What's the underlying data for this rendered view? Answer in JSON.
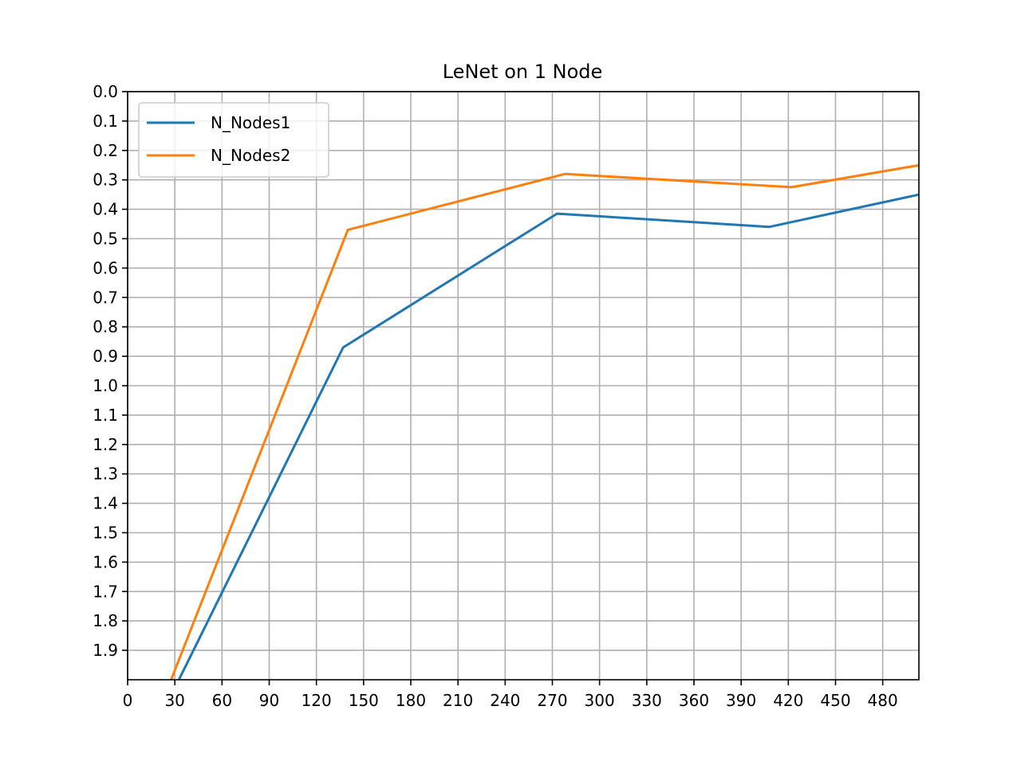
{
  "chart_data": {
    "type": "line",
    "title": "LeNet on 1 Node",
    "xlabel": "",
    "ylabel": "",
    "xlim": [
      0,
      503
    ],
    "ylim": [
      2.0,
      0.0
    ],
    "y_inverted": true,
    "grid": true,
    "legend_placement": "upper-left",
    "x_ticks": [
      0,
      30,
      60,
      90,
      120,
      150,
      180,
      210,
      240,
      270,
      300,
      330,
      360,
      390,
      420,
      450,
      480
    ],
    "y_ticks": [
      0.0,
      0.1,
      0.2,
      0.3,
      0.4,
      0.5,
      0.6,
      0.7,
      0.8,
      0.9,
      1.0,
      1.1,
      1.2,
      1.3,
      1.4,
      1.5,
      1.6,
      1.7,
      1.8,
      1.9
    ],
    "series": [
      {
        "name": "N_Nodes1",
        "color": "#1f77b4",
        "x": [
          28,
          137,
          273,
          408,
          503
        ],
        "y": [
          2.05,
          0.87,
          0.415,
          0.46,
          0.35
        ]
      },
      {
        "name": "N_Nodes2",
        "color": "#ff7f0e",
        "x": [
          24,
          140,
          278,
          422,
          503
        ],
        "y": [
          2.05,
          0.47,
          0.28,
          0.325,
          0.25
        ]
      }
    ]
  }
}
